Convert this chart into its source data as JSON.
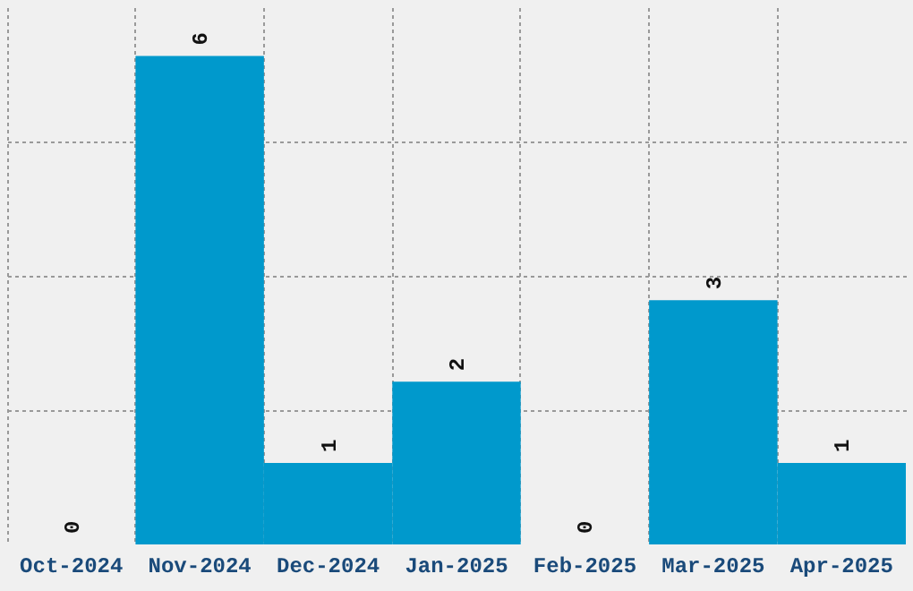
{
  "chart_data": {
    "type": "bar",
    "categories": [
      "Oct-2024",
      "Nov-2024",
      "Dec-2024",
      "Jan-2025",
      "Feb-2025",
      "Mar-2025",
      "Apr-2025"
    ],
    "values": [
      0,
      6,
      1,
      2,
      0,
      3,
      1
    ],
    "color": "#0099cc",
    "data_labels": true,
    "ylim": [
      0,
      6.6
    ],
    "yticks": [
      {
        "value": 1.65,
        "label": null
      },
      {
        "value": 3.3,
        "label": null
      },
      {
        "value": 4.95,
        "label": null
      }
    ],
    "grid": true,
    "tick_labels": "x"
  }
}
